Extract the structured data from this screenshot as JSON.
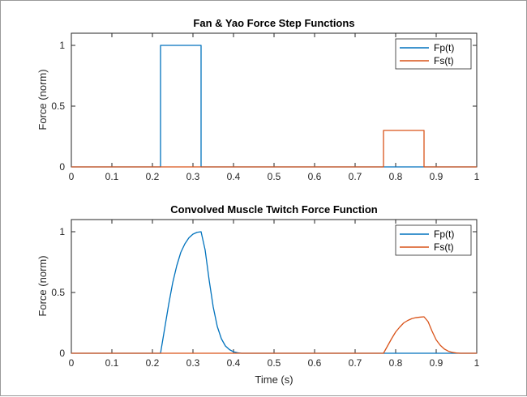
{
  "chart_data": [
    {
      "type": "line",
      "title": "Fan & Yao Force Step Functions",
      "xlabel": "",
      "ylabel": "Force (norm)",
      "xlim": [
        0,
        1
      ],
      "ylim": [
        0,
        1.1
      ],
      "xticks": [
        "0",
        "0.1",
        "0.2",
        "0.3",
        "0.4",
        "0.5",
        "0.6",
        "0.7",
        "0.8",
        "0.9",
        "1"
      ],
      "yticks": [
        "0",
        "0.5",
        "1"
      ],
      "legend": {
        "position": "top-right",
        "entries": [
          "Fp(t)",
          "Fs(t)"
        ]
      },
      "series": [
        {
          "name": "Fp(t)",
          "color": "#0072BD",
          "points": [
            [
              0,
              0
            ],
            [
              0.22,
              0
            ],
            [
              0.22,
              1
            ],
            [
              0.32,
              1
            ],
            [
              0.32,
              0
            ],
            [
              1,
              0
            ]
          ]
        },
        {
          "name": "Fs(t)",
          "color": "#D95319",
          "points": [
            [
              0,
              0
            ],
            [
              0.77,
              0
            ],
            [
              0.77,
              0.3
            ],
            [
              0.87,
              0.3
            ],
            [
              0.87,
              0
            ],
            [
              1,
              0
            ]
          ]
        }
      ]
    },
    {
      "type": "line",
      "title": "Convolved Muscle Twitch Force Function",
      "xlabel": "Time (s)",
      "ylabel": "Force (norm)",
      "xlim": [
        0,
        1
      ],
      "ylim": [
        0,
        1.1
      ],
      "xticks": [
        "0",
        "0.1",
        "0.2",
        "0.3",
        "0.4",
        "0.5",
        "0.6",
        "0.7",
        "0.8",
        "0.9",
        "1"
      ],
      "yticks": [
        "0",
        "0.5",
        "1"
      ],
      "legend": {
        "position": "top-right",
        "entries": [
          "Fp(t)",
          "Fs(t)"
        ]
      },
      "series": [
        {
          "name": "Fp(t)",
          "color": "#0072BD",
          "points": [
            [
              0,
              0
            ],
            [
              0.22,
              0
            ],
            [
              0.23,
              0.2
            ],
            [
              0.24,
              0.4
            ],
            [
              0.25,
              0.58
            ],
            [
              0.26,
              0.72
            ],
            [
              0.27,
              0.83
            ],
            [
              0.28,
              0.9
            ],
            [
              0.29,
              0.95
            ],
            [
              0.3,
              0.98
            ],
            [
              0.31,
              0.995
            ],
            [
              0.32,
              1.0
            ],
            [
              0.33,
              0.85
            ],
            [
              0.34,
              0.6
            ],
            [
              0.35,
              0.38
            ],
            [
              0.36,
              0.22
            ],
            [
              0.37,
              0.12
            ],
            [
              0.38,
              0.06
            ],
            [
              0.39,
              0.03
            ],
            [
              0.4,
              0.012
            ],
            [
              0.41,
              0.004
            ],
            [
              0.42,
              0.0
            ],
            [
              1,
              0
            ]
          ]
        },
        {
          "name": "Fs(t)",
          "color": "#D95319",
          "points": [
            [
              0,
              0
            ],
            [
              0.77,
              0
            ],
            [
              0.78,
              0.06
            ],
            [
              0.79,
              0.12
            ],
            [
              0.8,
              0.175
            ],
            [
              0.81,
              0.215
            ],
            [
              0.82,
              0.25
            ],
            [
              0.83,
              0.27
            ],
            [
              0.84,
              0.285
            ],
            [
              0.85,
              0.293
            ],
            [
              0.86,
              0.297
            ],
            [
              0.87,
              0.3
            ],
            [
              0.88,
              0.26
            ],
            [
              0.89,
              0.18
            ],
            [
              0.9,
              0.11
            ],
            [
              0.91,
              0.066
            ],
            [
              0.92,
              0.035
            ],
            [
              0.93,
              0.017
            ],
            [
              0.94,
              0.007
            ],
            [
              0.95,
              0.002
            ],
            [
              0.96,
              0.0
            ],
            [
              1,
              0
            ]
          ]
        }
      ]
    }
  ]
}
